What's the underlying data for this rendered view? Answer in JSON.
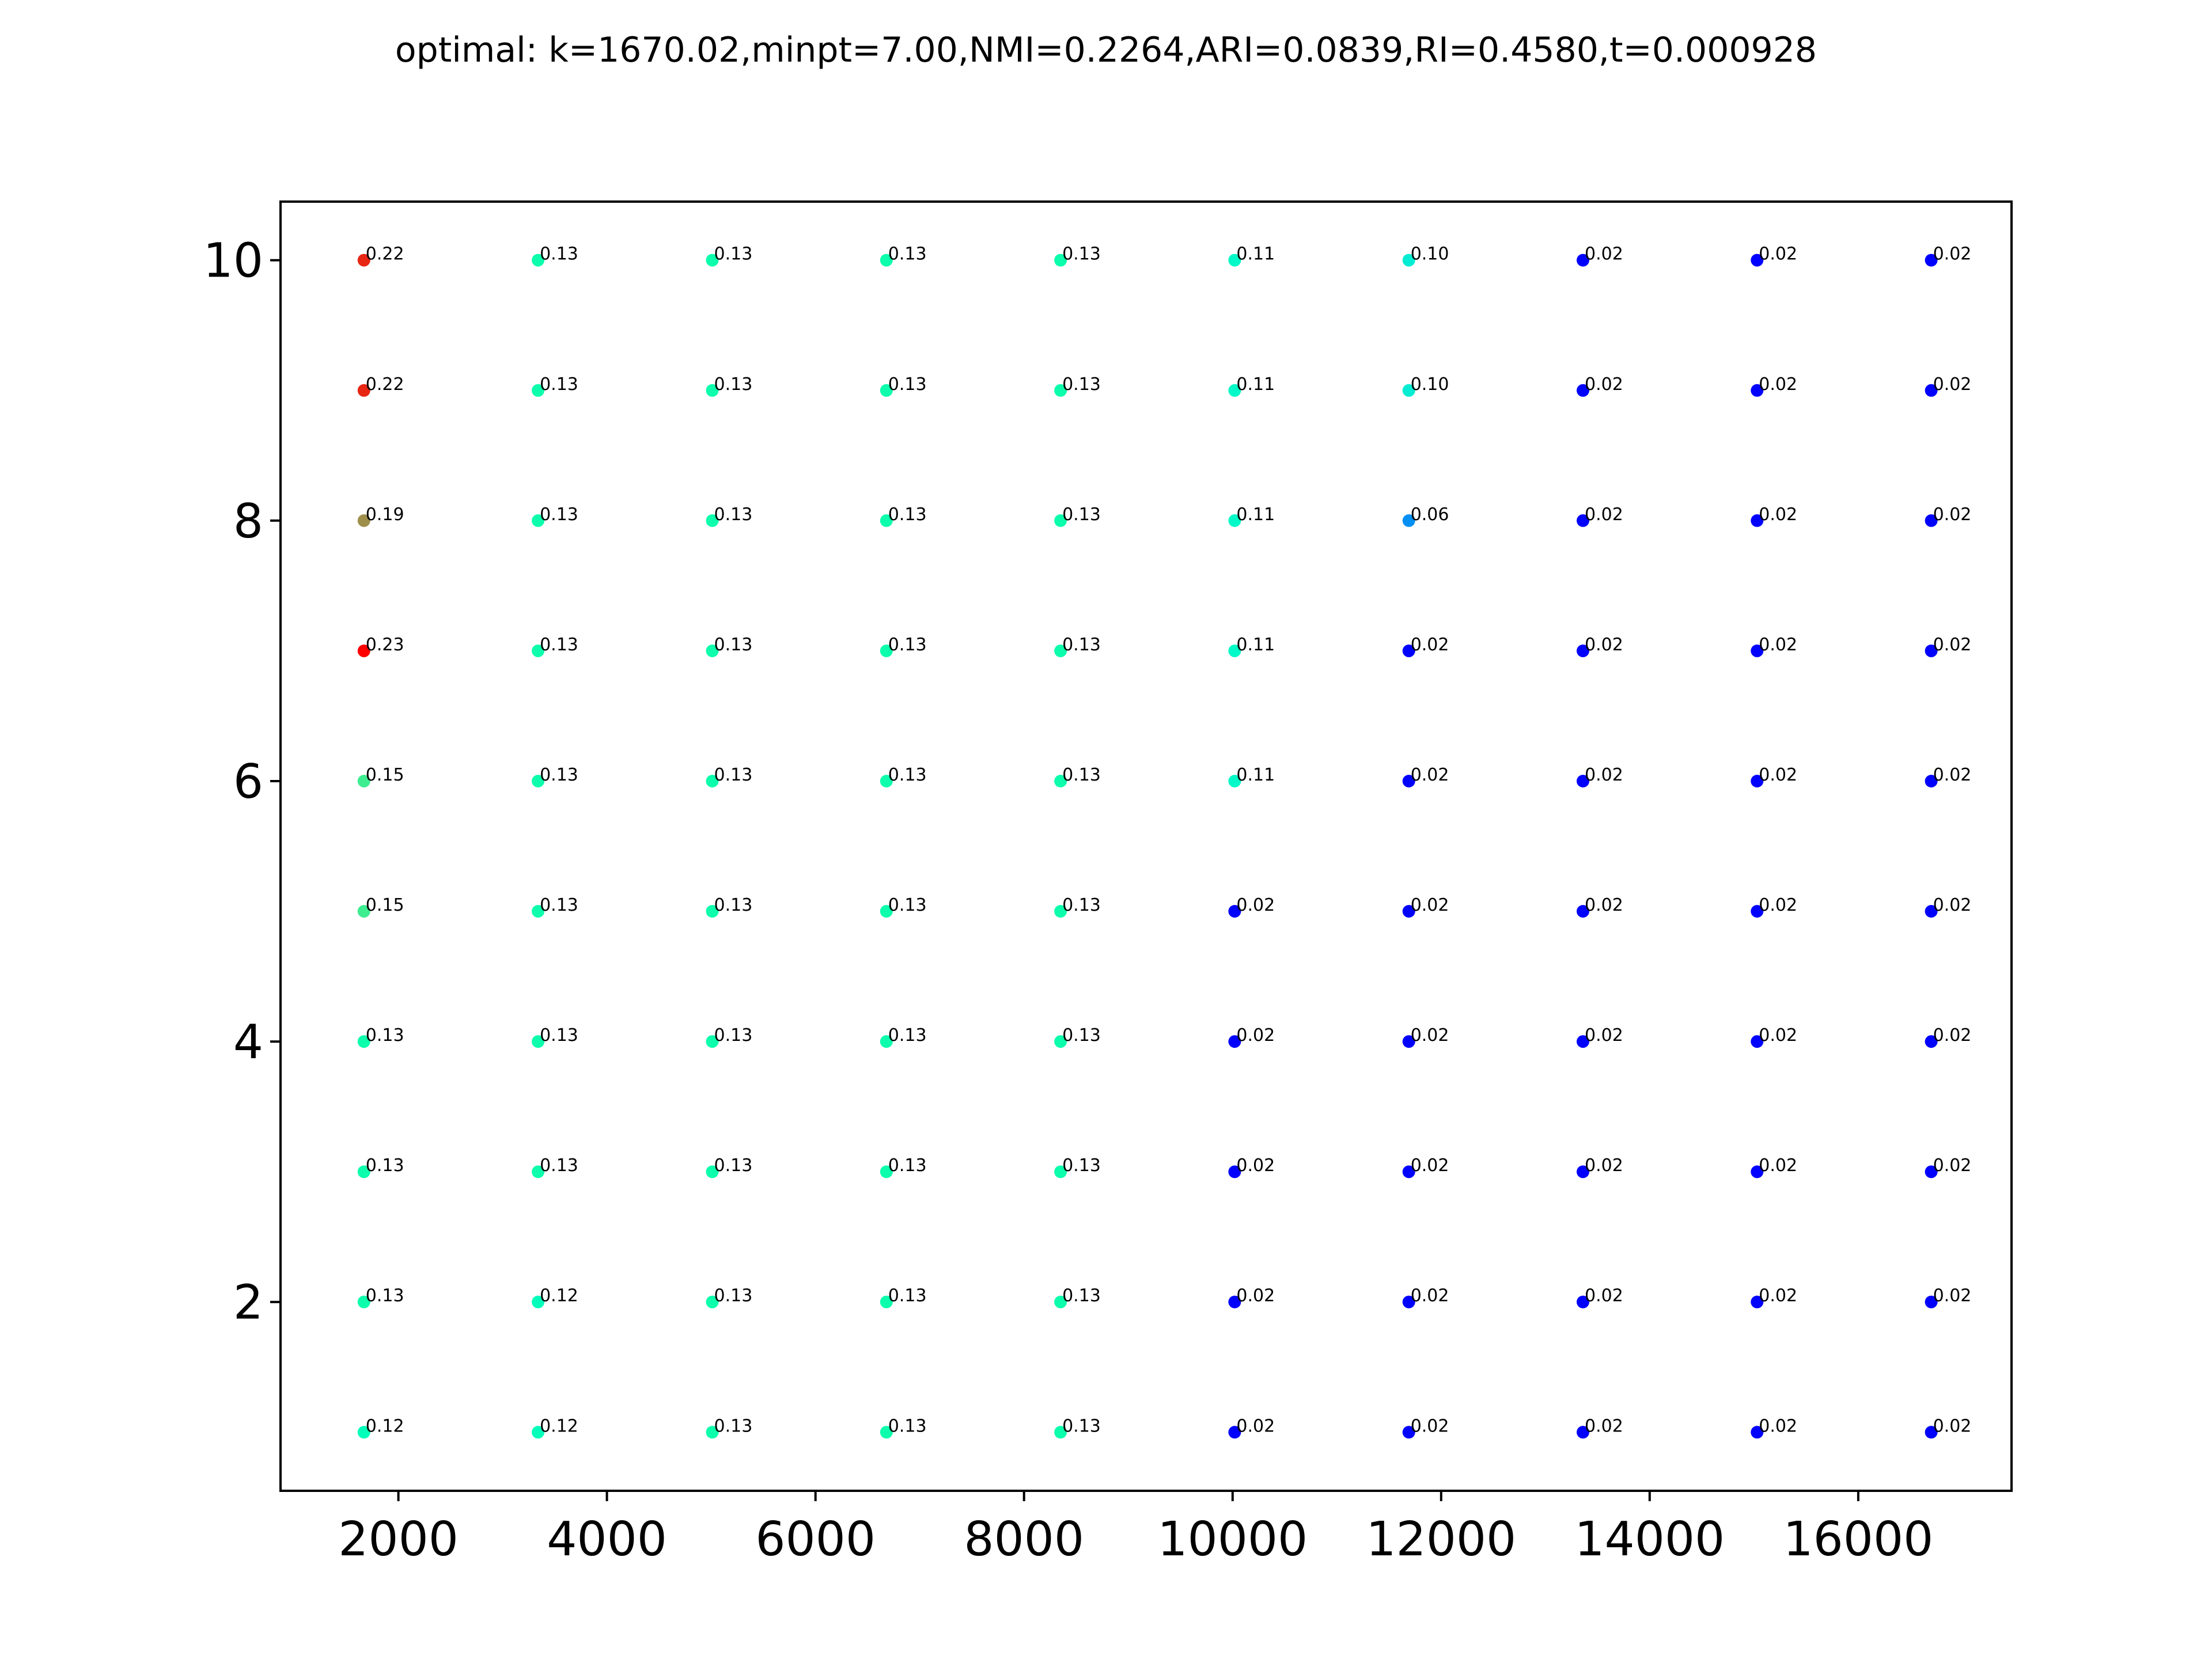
{
  "chart_data": {
    "type": "scatter",
    "title": "optimal: k=1670.02,minpt=7.00,NMI=0.2264,ARI=0.0839,RI=0.4580,t=0.000928",
    "xlabel": "",
    "ylabel": "",
    "xlim": [
      870,
      17470
    ],
    "ylim": [
      0.55,
      10.45
    ],
    "xticks": [
      2000,
      4000,
      6000,
      8000,
      10000,
      12000,
      14000,
      16000
    ],
    "yticks": [
      2,
      4,
      6,
      8,
      10
    ],
    "grid": false,
    "legend": "none",
    "colormap": "rainbow",
    "color_range": [
      0.02,
      0.23
    ],
    "x": [
      1670.02,
      3340.04,
      5010.06,
      6680.08,
      8350.1,
      10020.12,
      11690.14,
      13360.16,
      15030.18,
      16700.2
    ],
    "y": [
      1,
      2,
      3,
      4,
      5,
      6,
      7,
      8,
      9,
      10
    ],
    "grid_values": [
      [
        0.12,
        0.12,
        0.13,
        0.13,
        0.13,
        0.02,
        0.02,
        0.02,
        0.02,
        0.02
      ],
      [
        0.13,
        0.12,
        0.13,
        0.13,
        0.13,
        0.02,
        0.02,
        0.02,
        0.02,
        0.02
      ],
      [
        0.13,
        0.13,
        0.13,
        0.13,
        0.13,
        0.02,
        0.02,
        0.02,
        0.02,
        0.02
      ],
      [
        0.13,
        0.13,
        0.13,
        0.13,
        0.13,
        0.02,
        0.02,
        0.02,
        0.02,
        0.02
      ],
      [
        0.15,
        0.13,
        0.13,
        0.13,
        0.13,
        0.02,
        0.02,
        0.02,
        0.02,
        0.02
      ],
      [
        0.15,
        0.13,
        0.13,
        0.13,
        0.13,
        0.11,
        0.02,
        0.02,
        0.02,
        0.02
      ],
      [
        0.23,
        0.13,
        0.13,
        0.13,
        0.13,
        0.11,
        0.02,
        0.02,
        0.02,
        0.02
      ],
      [
        0.19,
        0.13,
        0.13,
        0.13,
        0.13,
        0.11,
        0.06,
        0.02,
        0.02,
        0.02
      ],
      [
        0.22,
        0.13,
        0.13,
        0.13,
        0.13,
        0.11,
        0.1,
        0.02,
        0.02,
        0.02
      ],
      [
        0.22,
        0.13,
        0.13,
        0.13,
        0.13,
        0.11,
        0.1,
        0.02,
        0.02,
        0.02
      ]
    ]
  }
}
